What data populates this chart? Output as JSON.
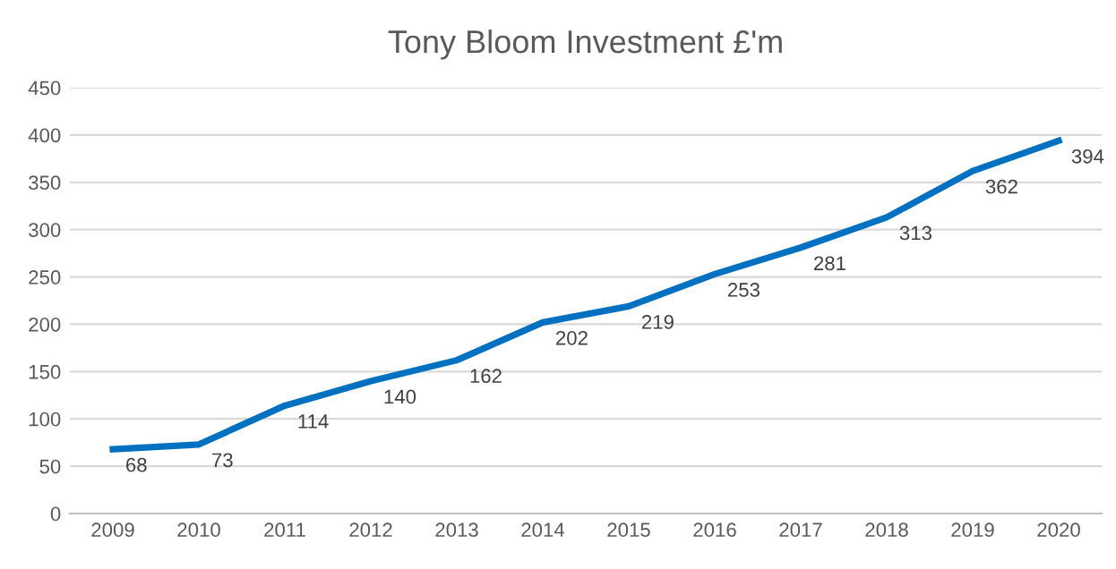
{
  "chart_data": {
    "type": "line",
    "title": "Tony Bloom Investment £'m",
    "categories": [
      "2009",
      "2010",
      "2011",
      "2012",
      "2013",
      "2014",
      "2015",
      "2016",
      "2017",
      "2018",
      "2019",
      "2020"
    ],
    "series": [
      {
        "color": "#0070c0",
        "values": [
          68,
          73,
          114,
          140,
          162,
          202,
          219,
          253,
          281,
          313,
          362,
          394
        ]
      }
    ],
    "ylim": [
      0,
      450
    ],
    "yticks": [
      0,
      50,
      100,
      150,
      200,
      250,
      300,
      350,
      400,
      450
    ],
    "grid": "y",
    "data_labels": true,
    "marker": "none",
    "line_style": "solid",
    "legend": false
  }
}
